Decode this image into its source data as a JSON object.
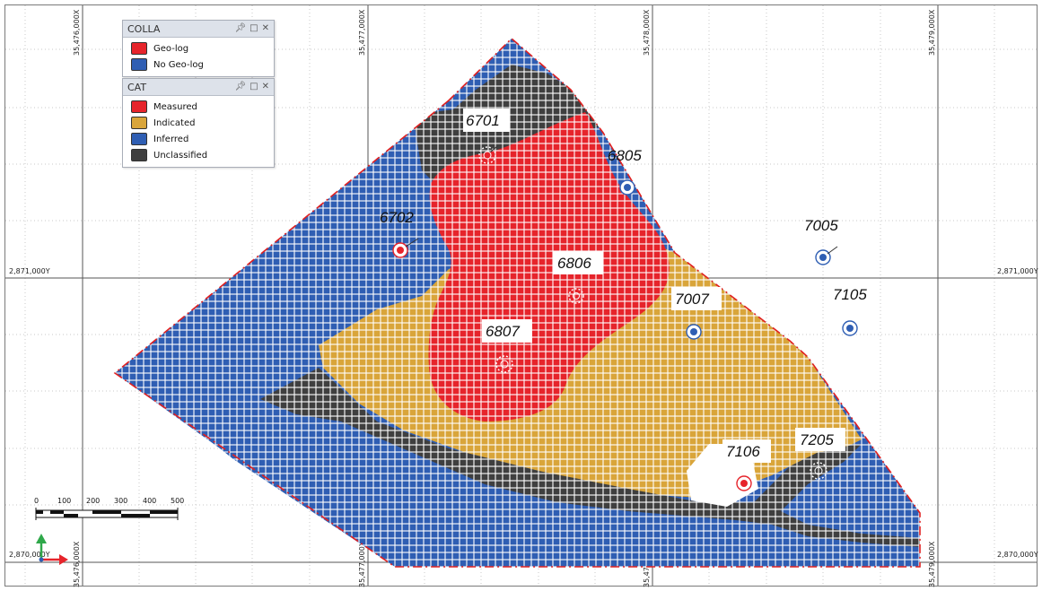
{
  "grid": {
    "x_labels": [
      "35,476,000X",
      "35,477,000X",
      "35,478,000X",
      "35,479,000X"
    ],
    "y_labels": [
      "2,871,000Y",
      "2,870,000Y"
    ]
  },
  "legends": {
    "colla": {
      "title": "COLLA",
      "controls": [
        "&#x1F4CC;",
        "□",
        "×"
      ],
      "items": [
        {
          "label": "Geo-log",
          "color": "#e6242b"
        },
        {
          "label": "No Geo-log",
          "color": "#2f5eb3"
        }
      ]
    },
    "cat": {
      "title": "CAT",
      "items": [
        {
          "label": "Measured",
          "color": "#e6242b"
        },
        {
          "label": "Indicated",
          "color": "#d9a53a"
        },
        {
          "label": "Inferred",
          "color": "#2f5eb3"
        },
        {
          "label": "Unclassified",
          "color": "#3f3f3f"
        }
      ]
    },
    "pin_icon": "pin-icon",
    "maximize_icon": "maximize-icon",
    "close_icon": "close-icon"
  },
  "drillholes": [
    {
      "id": "6701",
      "geo_log": true
    },
    {
      "id": "6702",
      "geo_log": true
    },
    {
      "id": "6805",
      "geo_log": false
    },
    {
      "id": "6806",
      "geo_log": true
    },
    {
      "id": "6807",
      "geo_log": true
    },
    {
      "id": "7005",
      "geo_log": false
    },
    {
      "id": "7007",
      "geo_log": false
    },
    {
      "id": "7105",
      "geo_log": false
    },
    {
      "id": "7106",
      "geo_log": true
    },
    {
      "id": "7205",
      "geo_log": false
    }
  ],
  "scale_bar": {
    "ticks": [
      "0",
      "100",
      "200",
      "300",
      "400",
      "500"
    ]
  },
  "colors": {
    "measured": "#e6242b",
    "indicated": "#d9a53a",
    "inferred": "#2f5eb3",
    "unclassified": "#3f3f3f",
    "boundary": "#e02020"
  }
}
